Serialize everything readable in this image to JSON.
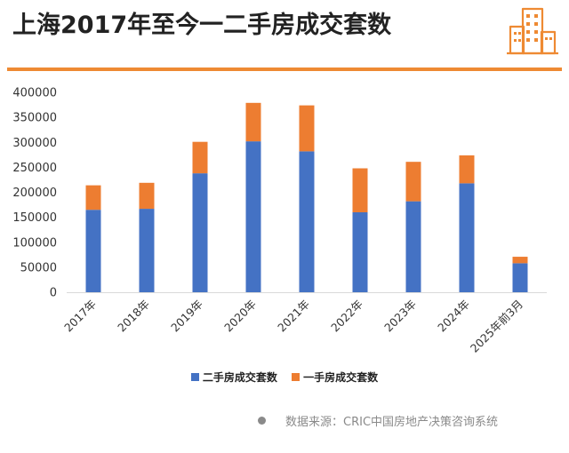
{
  "title": "上海2017年至今一二手房成交套数",
  "logo_icon": "city-buildings-icon",
  "colors": {
    "accent": "#ee8a33",
    "series_1": "#4472c4",
    "series_2": "#ed7d31"
  },
  "source": {
    "label": "数据来源：CRIC中国房地产决策咨询系统"
  },
  "chart_data": {
    "type": "bar",
    "stacked": true,
    "categories": [
      "2017年",
      "2018年",
      "2019年",
      "2020年",
      "2021年",
      "2022年",
      "2023年",
      "2024年",
      "2025年前3月"
    ],
    "series": [
      {
        "name": "二手房成交套数",
        "color": "#4472c4",
        "values": [
          165000,
          167000,
          238000,
          302000,
          282000,
          160000,
          182000,
          218000,
          58000
        ]
      },
      {
        "name": "一手房成交套数",
        "color": "#ed7d31",
        "values": [
          49000,
          52000,
          63000,
          77000,
          92000,
          88000,
          79000,
          56000,
          13000
        ]
      }
    ],
    "ylim": [
      0,
      400000
    ],
    "yticks": [
      0,
      50000,
      100000,
      150000,
      200000,
      250000,
      300000,
      350000,
      400000
    ],
    "ytick_labels": [
      "0",
      "50000",
      "100000",
      "150000",
      "200000",
      "250000",
      "300000",
      "350000",
      "400000"
    ],
    "grid": false,
    "legend_position": "bottom"
  }
}
